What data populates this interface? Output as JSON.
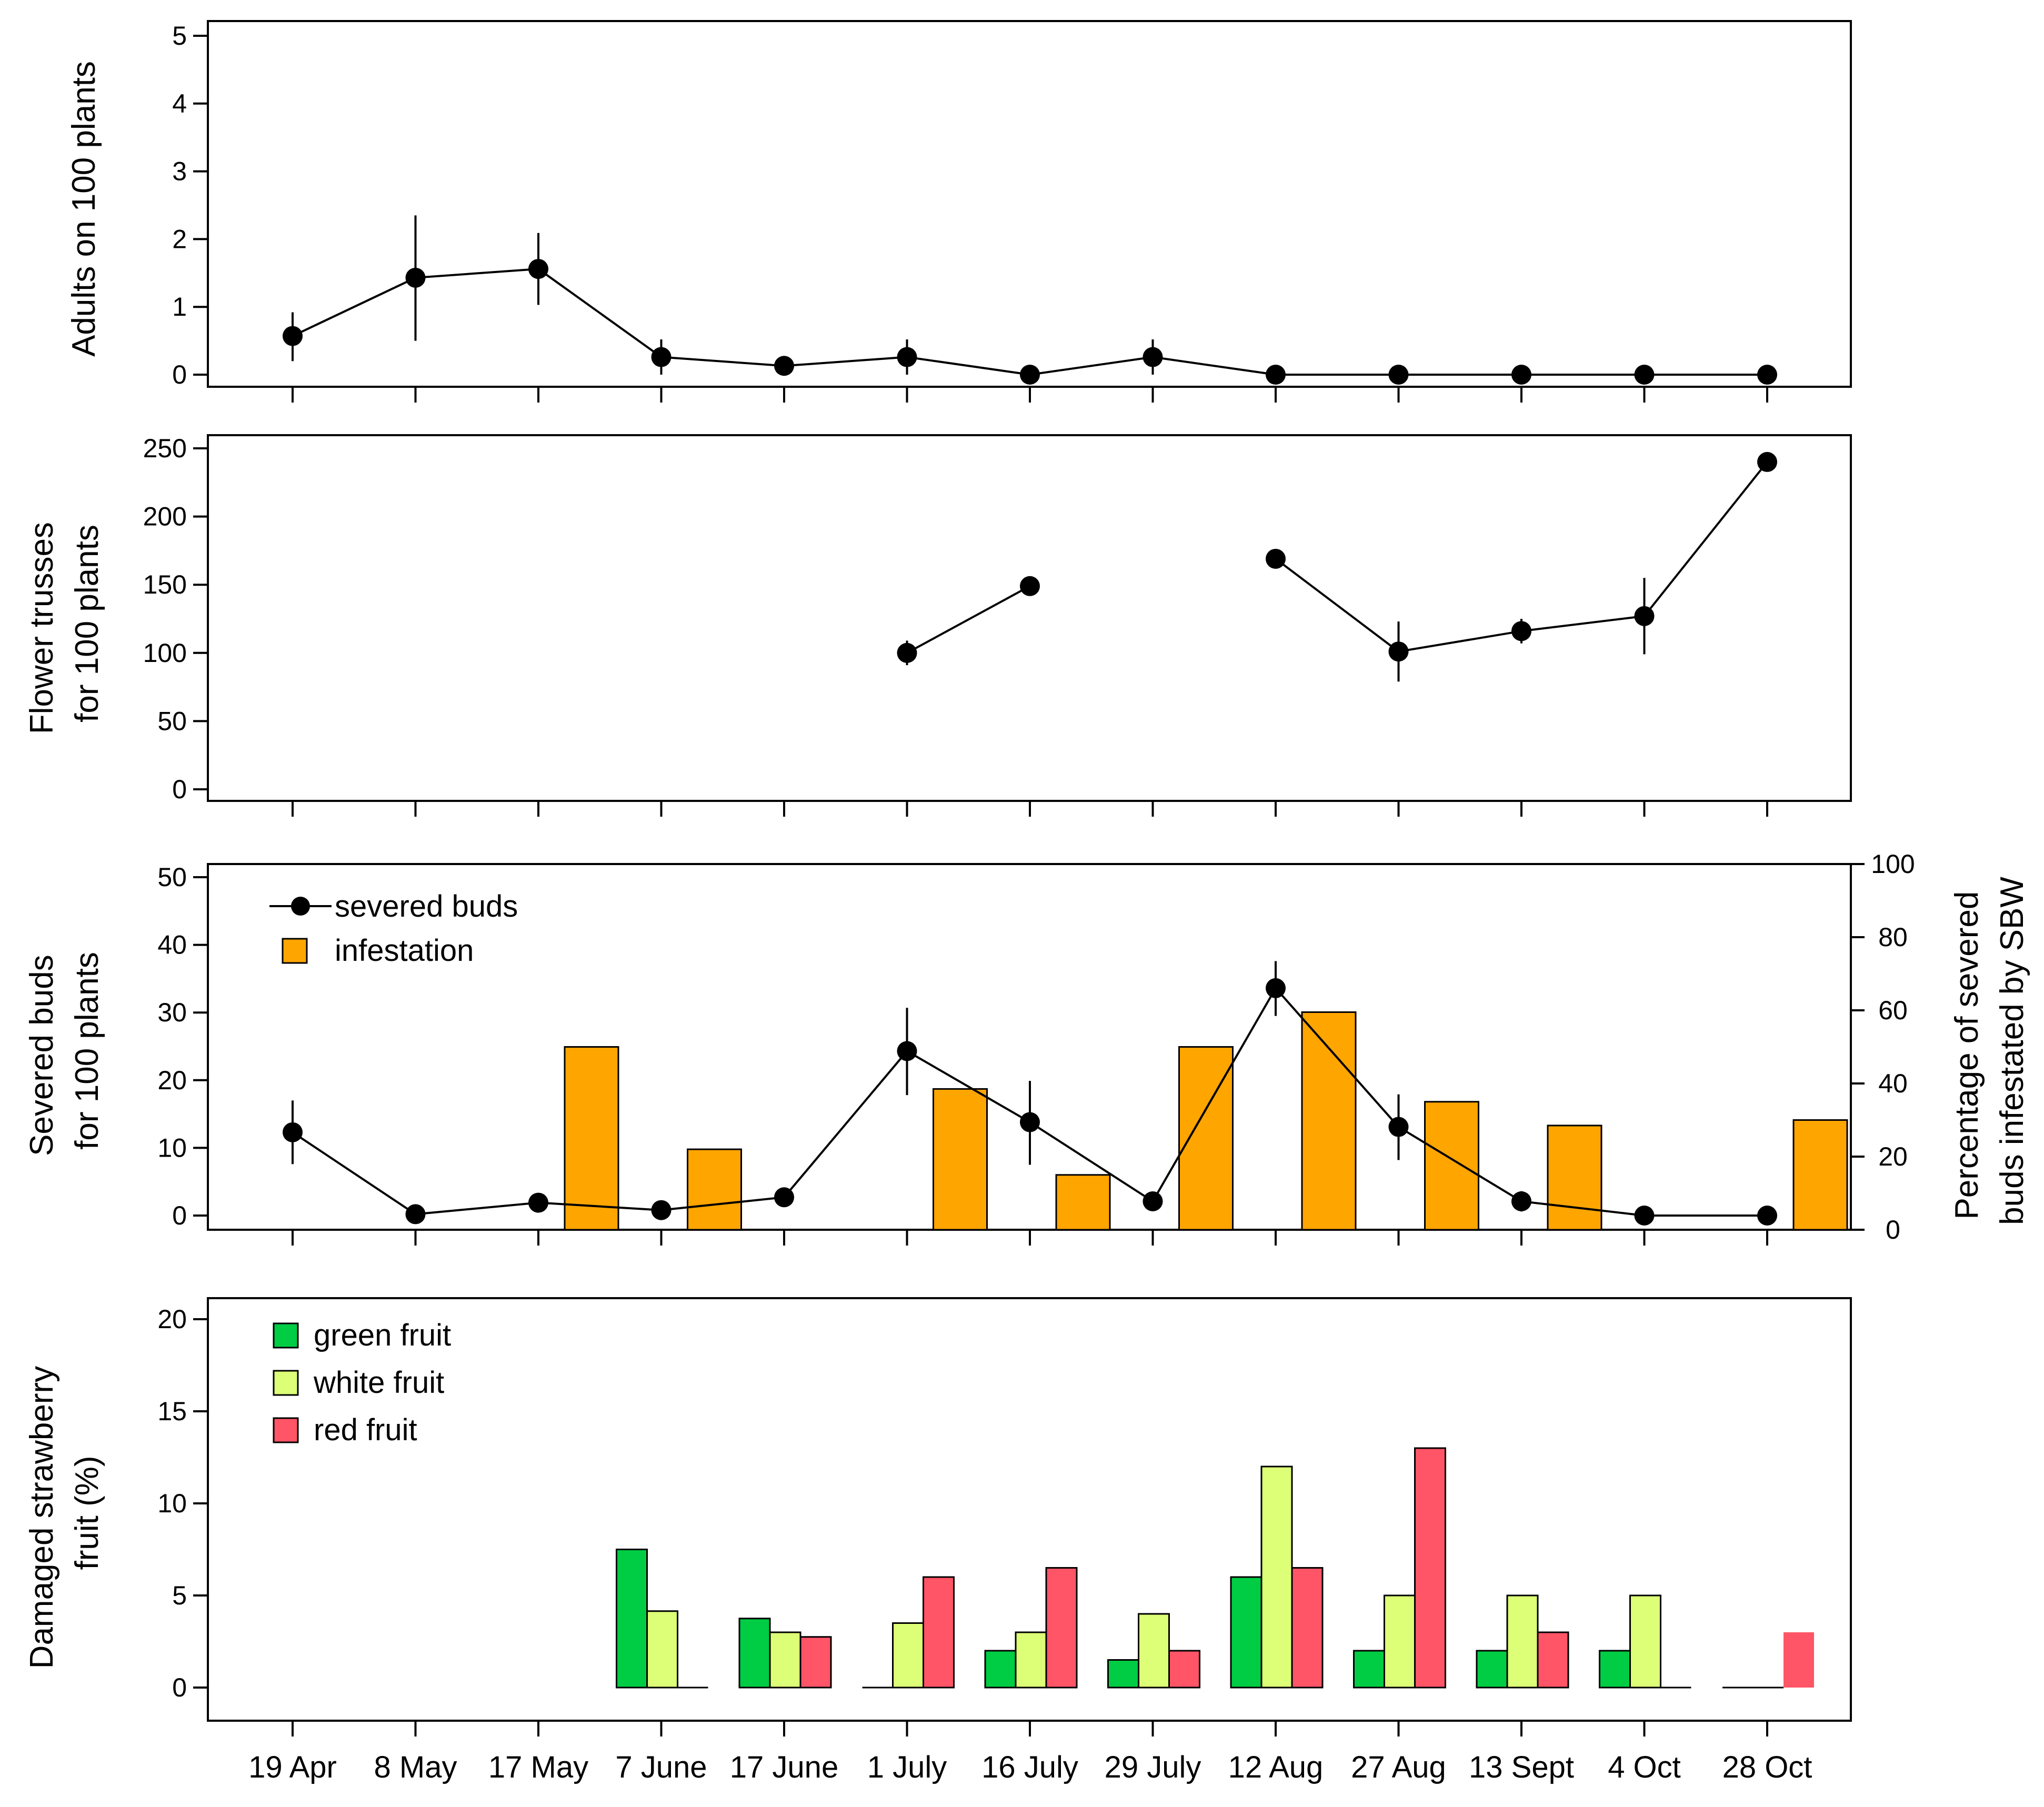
{
  "dates": [
    "19 Apr",
    "8 May",
    "17 May",
    "7 June",
    "17 June",
    "1 July",
    "16 July",
    "29 July",
    "12 Aug",
    "27 Aug",
    "13 Sept",
    "4 Oct",
    "28 Oct"
  ],
  "colors": {
    "infestation": "#FFA500",
    "green_fruit": "#00CC44",
    "white_fruit": "#DDFF77",
    "red_fruit": "#FF5566",
    "ink": "#000000"
  },
  "chart_data": [
    {
      "id": "adults",
      "type": "line",
      "ylabel": [
        "Adults on 100 plants"
      ],
      "ylim": [
        0,
        5
      ],
      "yticks": [
        0,
        1,
        2,
        3,
        4,
        5
      ],
      "series": [
        {
          "values": [
            0.57,
            1.43,
            1.56,
            0.26,
            0.13,
            0.26,
            0.0,
            0.26,
            0.0,
            0.0,
            0.0,
            0.0,
            0.0
          ],
          "err_low": [
            0.2,
            0.5,
            1.03,
            0.0,
            null,
            0.0,
            null,
            0.0,
            null,
            null,
            null,
            null,
            null
          ],
          "err_high": [
            0.92,
            2.35,
            2.09,
            0.52,
            null,
            0.52,
            null,
            0.52,
            null,
            null,
            null,
            null,
            null
          ]
        }
      ]
    },
    {
      "id": "trusses",
      "type": "line",
      "ylabel": [
        "Flower trusses",
        "for 100 plants"
      ],
      "ylim": [
        0,
        250
      ],
      "yticks": [
        0,
        50,
        100,
        150,
        200,
        250
      ],
      "series": [
        {
          "values": [
            null,
            null,
            null,
            null,
            null,
            100,
            149,
            null,
            169,
            101,
            116,
            127,
            240
          ],
          "err_low": [
            null,
            null,
            null,
            null,
            null,
            91,
            null,
            null,
            null,
            79,
            107,
            99,
            null
          ],
          "err_high": [
            null,
            null,
            null,
            null,
            null,
            109,
            null,
            null,
            null,
            123,
            125,
            155,
            null
          ]
        }
      ]
    },
    {
      "id": "severed",
      "type": "bar+line",
      "ylabel": [
        "Severed buds",
        "for 100 plants"
      ],
      "ylabel_right": [
        "Percentage of severed",
        "buds infestated by SBW"
      ],
      "ylim": [
        0,
        50
      ],
      "yticks": [
        0,
        10,
        20,
        30,
        40,
        50
      ],
      "ylim_right": [
        0,
        100
      ],
      "yticks_right": [
        0,
        20,
        40,
        60,
        80,
        100
      ],
      "legend": [
        "severed buds",
        "infestation"
      ],
      "series": [
        {
          "name": "severed buds",
          "axis": "left",
          "values": [
            12.3,
            0.2,
            1.9,
            0.8,
            2.7,
            24.3,
            13.8,
            2.1,
            33.6,
            13.1,
            2.1,
            0.0,
            0.0
          ],
          "err_low": [
            7.6,
            null,
            null,
            null,
            null,
            17.8,
            7.5,
            null,
            29.5,
            8.2,
            0.6,
            null,
            null
          ],
          "err_high": [
            17.0,
            null,
            null,
            null,
            null,
            30.7,
            19.9,
            null,
            37.6,
            17.9,
            3.6,
            null,
            null
          ]
        },
        {
          "name": "infestation",
          "axis": "right",
          "values": [
            null,
            null,
            50,
            22,
            null,
            38.5,
            15,
            50,
            59.5,
            35,
            28.5,
            null,
            30
          ]
        }
      ]
    },
    {
      "id": "fruit",
      "type": "bar",
      "ylabel": [
        "Damaged strawberry",
        "fruit (%)"
      ],
      "ylim": [
        0,
        20
      ],
      "yticks": [
        0,
        5,
        10,
        15,
        20
      ],
      "legend": [
        "green fruit",
        "white fruit",
        "red fruit"
      ],
      "series": [
        {
          "name": "green fruit",
          "values": [
            null,
            null,
            null,
            7.5,
            3.75,
            0,
            2.0,
            1.5,
            6.0,
            2.0,
            2.0,
            2.0,
            0
          ]
        },
        {
          "name": "white fruit",
          "values": [
            null,
            null,
            null,
            4.15,
            3.0,
            3.5,
            3.0,
            4.0,
            12.0,
            5.0,
            5.0,
            5.0,
            0
          ]
        },
        {
          "name": "red fruit",
          "values": [
            null,
            null,
            null,
            0,
            2.75,
            6.0,
            6.5,
            2.0,
            6.5,
            13.0,
            3.0,
            0,
            3.0
          ]
        }
      ]
    }
  ]
}
